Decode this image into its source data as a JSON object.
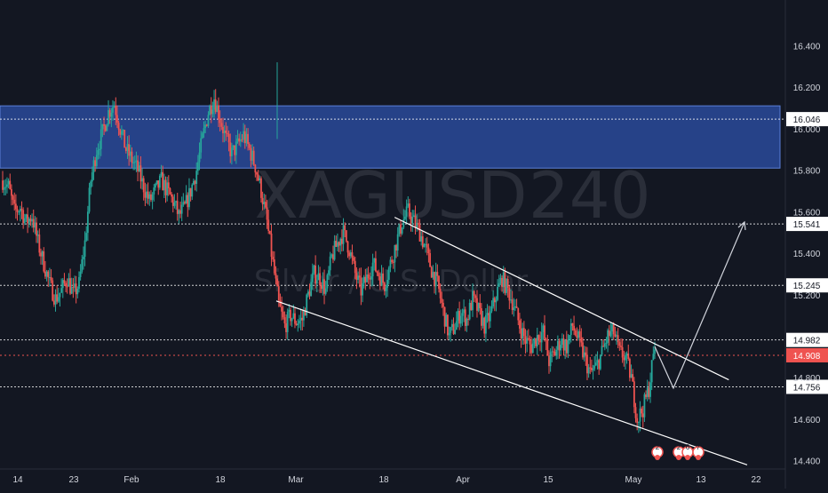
{
  "colors": {
    "background": "#131722",
    "up": "#26a69a",
    "down": "#ef5350",
    "zone_fill": "#2a4a9a",
    "level_line": "#ffffff",
    "current_price_line": "#ef5350",
    "axis_text": "#d1d4dc",
    "watermark": "#2a2e39"
  },
  "watermark": {
    "symbol": "XAGUSD",
    "interval": "240",
    "description": "Silver / U.S. Dollar"
  },
  "chart_data": {
    "type": "candlestick",
    "symbol": "XAGUSD",
    "interval": "240",
    "ylim": [
      14.36,
      16.62
    ],
    "y_ticks": [
      "16.400",
      "16.200",
      "16.000",
      "15.800",
      "15.600",
      "15.400",
      "15.200",
      "14.800",
      "14.600",
      "14.400"
    ],
    "x_ticks": [
      "14",
      "23",
      "Feb",
      "18",
      "Mar",
      "18",
      "Apr",
      "15",
      "May",
      "13",
      "22"
    ],
    "price_levels": [
      {
        "value": 16.046,
        "label": "16.046",
        "style": "white-dashed"
      },
      {
        "value": 15.541,
        "label": "15.541",
        "style": "white-dashed"
      },
      {
        "value": 15.245,
        "label": "15.245",
        "style": "white-dashed"
      },
      {
        "value": 14.982,
        "label": "14.982",
        "style": "white-dashed"
      },
      {
        "value": 14.908,
        "label": "14.908",
        "style": "current-price"
      },
      {
        "value": 14.756,
        "label": "14.756",
        "style": "white-dashed"
      }
    ],
    "supply_zone": {
      "from": 15.81,
      "to": 16.11
    },
    "close_path": [
      15.75,
      15.72,
      15.6,
      15.62,
      15.55,
      15.58,
      15.45,
      15.35,
      15.25,
      15.18,
      15.22,
      15.28,
      15.2,
      15.25,
      15.45,
      15.75,
      15.9,
      15.98,
      16.08,
      16.12,
      16.0,
      15.9,
      15.85,
      15.8,
      15.72,
      15.65,
      15.7,
      15.75,
      15.7,
      15.65,
      15.58,
      15.62,
      15.7,
      15.8,
      15.95,
      16.08,
      16.15,
      16.05,
      15.95,
      15.88,
      15.92,
      15.97,
      15.9,
      15.82,
      15.7,
      15.55,
      15.35,
      15.15,
      15.05,
      15.1,
      15.07,
      15.08,
      15.2,
      15.3,
      15.28,
      15.22,
      15.38,
      15.45,
      15.5,
      15.42,
      15.3,
      15.22,
      15.28,
      15.35,
      15.3,
      15.25,
      15.35,
      15.45,
      15.55,
      15.6,
      15.55,
      15.5,
      15.42,
      15.32,
      15.25,
      15.12,
      15.0,
      15.05,
      15.12,
      15.08,
      15.18,
      15.12,
      15.05,
      15.1,
      15.2,
      15.28,
      15.22,
      15.15,
      15.05,
      14.98,
      14.95,
      15.0,
      15.02,
      14.88,
      14.92,
      14.98,
      14.95,
      15.05,
      14.98,
      14.9,
      14.82,
      14.85,
      14.92,
      15.0,
      15.02,
      14.92,
      14.9,
      14.8,
      14.6,
      14.65,
      14.75,
      14.95
    ],
    "projection": [
      {
        "x": "last",
        "y": 14.95
      },
      {
        "x": "+5 bars",
        "y": 14.75
      },
      {
        "x": "+20 bars",
        "y": 15.55
      }
    ],
    "channel": {
      "upper": [
        [
          0.55,
          15.59
        ],
        [
          0.98,
          14.79
        ]
      ],
      "lower": [
        [
          0.37,
          15.17
        ],
        [
          1.0,
          14.38
        ]
      ]
    },
    "event_badges": [
      "2",
      "2",
      "6",
      "7"
    ]
  }
}
